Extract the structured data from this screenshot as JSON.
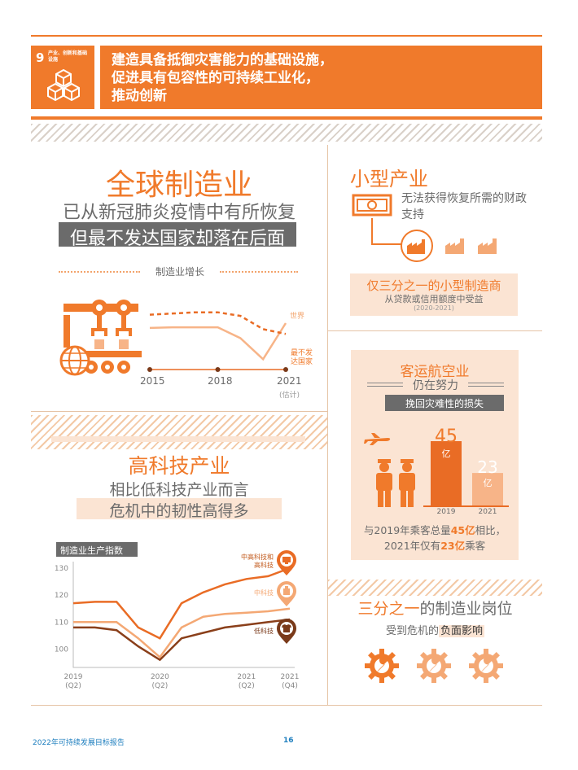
{
  "header": {
    "goal_number": "9",
    "goal_short": "产业、创新和基础设施",
    "goal_title_lines": [
      "建造具备抵御灾害能力的基础设施，",
      "促进具有包容性的可持续工业化，",
      "推动创新"
    ]
  },
  "global_manufacturing": {
    "title": "全球制造业",
    "line1": "已从新冠肺炎疫情中有所恢复",
    "line2": "但最不发达国家却落在后面",
    "chart_title": "制造业增长",
    "series_label_world": "世界",
    "series_label_ldc": "最不发达国家",
    "x_labels": [
      "2015",
      "2018",
      "2021"
    ],
    "x_note": "(估计)"
  },
  "small_industry": {
    "title": "小型产业",
    "text": "无法获得恢复所需的财政支持",
    "highlight": "仅三分之一的小型制造商",
    "sub": "从贷款或信用额度中受益",
    "years": "(2020-2021)"
  },
  "aviation": {
    "title": "客运航空业",
    "subtitle": "仍在努力",
    "banner": "挽回灾难性的损失",
    "bar_2019_value": "45",
    "bar_2019_unit": "亿",
    "bar_2019_year": "2019",
    "bar_2021_value": "23",
    "bar_2021_unit": "亿",
    "bar_2021_year": "2021",
    "caption_pre": "与2019年乘客总量",
    "caption_mid": "45亿",
    "caption_post": "相比，",
    "caption2_pre": "2021年仅有",
    "caption2_mid": "23亿",
    "caption2_post": "乘客"
  },
  "high_tech": {
    "title": "高科技产业",
    "line1": "相比低科技产业而言",
    "line2": "危机中的韧性高得多",
    "chart_title": "制造业生产指数"
  },
  "jobs": {
    "title_pre": "三分之一",
    "title_post": "的制造业岗位",
    "sub_pre": "受到危机的",
    "sub_highlight": "负面影响"
  },
  "footer": {
    "report": "2022年可持续发展目标报告",
    "page": "16"
  },
  "chart_data": [
    {
      "type": "line",
      "title": "制造业增长",
      "x": [
        "2015",
        "2016",
        "2017",
        "2018",
        "2019",
        "2020",
        "2021"
      ],
      "series": [
        {
          "name": "世界",
          "values": [
            3.2,
            3.3,
            3.3,
            3.3,
            1.5,
            -2.0,
            4.0
          ]
        },
        {
          "name": "最不发达国家",
          "values": [
            5.4,
            5.6,
            5.8,
            5.8,
            5.2,
            3.0,
            2.2
          ]
        }
      ],
      "xlabel": "",
      "ylabel": "",
      "x_tick_labels": [
        "2015",
        "2018",
        "2021"
      ]
    },
    {
      "type": "line",
      "title": "制造业生产指数",
      "x": [
        "2019 Q2",
        "2019 Q3",
        "2019 Q4",
        "2020 Q1",
        "2020 Q2",
        "2020 Q3",
        "2020 Q4",
        "2021 Q1",
        "2021 Q2",
        "2021 Q3",
        "2021 Q4"
      ],
      "x_tick_labels": [
        "2019\n(Q2)",
        "2020\n(Q2)",
        "2021\n(Q2)",
        "2021\n(Q4)"
      ],
      "series": [
        {
          "name": "中高科技和高科技",
          "values": [
            117,
            117.5,
            117.5,
            108,
            104,
            117,
            121,
            124,
            126,
            127,
            130
          ]
        },
        {
          "name": "中科技",
          "values": [
            110,
            110,
            110,
            104,
            97,
            108,
            112,
            113,
            113.5,
            114,
            115
          ]
        },
        {
          "name": "低科技",
          "values": [
            108,
            108,
            107,
            101,
            96,
            104,
            106,
            108,
            109,
            110,
            111
          ]
        }
      ],
      "ylim": [
        95,
        130
      ],
      "y_ticks": [
        100,
        110,
        120,
        130
      ]
    },
    {
      "type": "bar",
      "title": "",
      "categories": [
        "2019",
        "2021"
      ],
      "values": [
        45,
        23
      ],
      "unit": "亿"
    }
  ]
}
